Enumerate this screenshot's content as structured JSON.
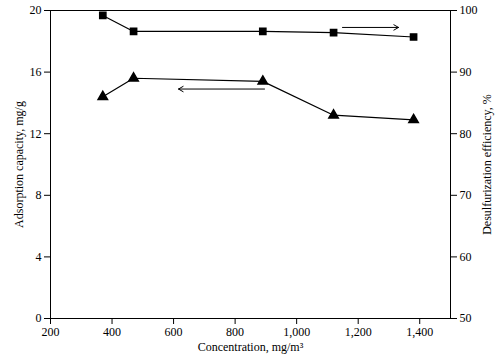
{
  "chart_data": {
    "type": "line",
    "xlabel": "Concentration, mg/m³",
    "ylabel": "Adsorption capacity, mg/g",
    "y2label": "Desulfurization efficiency, %",
    "xlim": [
      200,
      1500
    ],
    "xticks": [
      200,
      400,
      600,
      800,
      1000,
      1200,
      1400
    ],
    "ylim": [
      0,
      20
    ],
    "yticks": [
      0,
      4,
      8,
      12,
      16,
      20
    ],
    "y2lim": [
      50,
      100
    ],
    "y2ticks": [
      50,
      60,
      70,
      80,
      90,
      100
    ],
    "grid": false,
    "series": [
      {
        "x": [
          370,
          470,
          890,
          1120,
          1380
        ],
        "values": [
          14.4,
          15.6,
          15.4,
          13.2,
          12.9
        ],
        "color": "#000000",
        "marker": "triangle",
        "line_style": "solid",
        "axis": "y"
      },
      {
        "x": [
          370,
          470,
          890,
          1120,
          1380
        ],
        "values": [
          99.2,
          96.6,
          96.6,
          96.4,
          95.7
        ],
        "color": "#000000",
        "marker": "square",
        "line_style": "solid",
        "axis": "y2"
      }
    ]
  }
}
